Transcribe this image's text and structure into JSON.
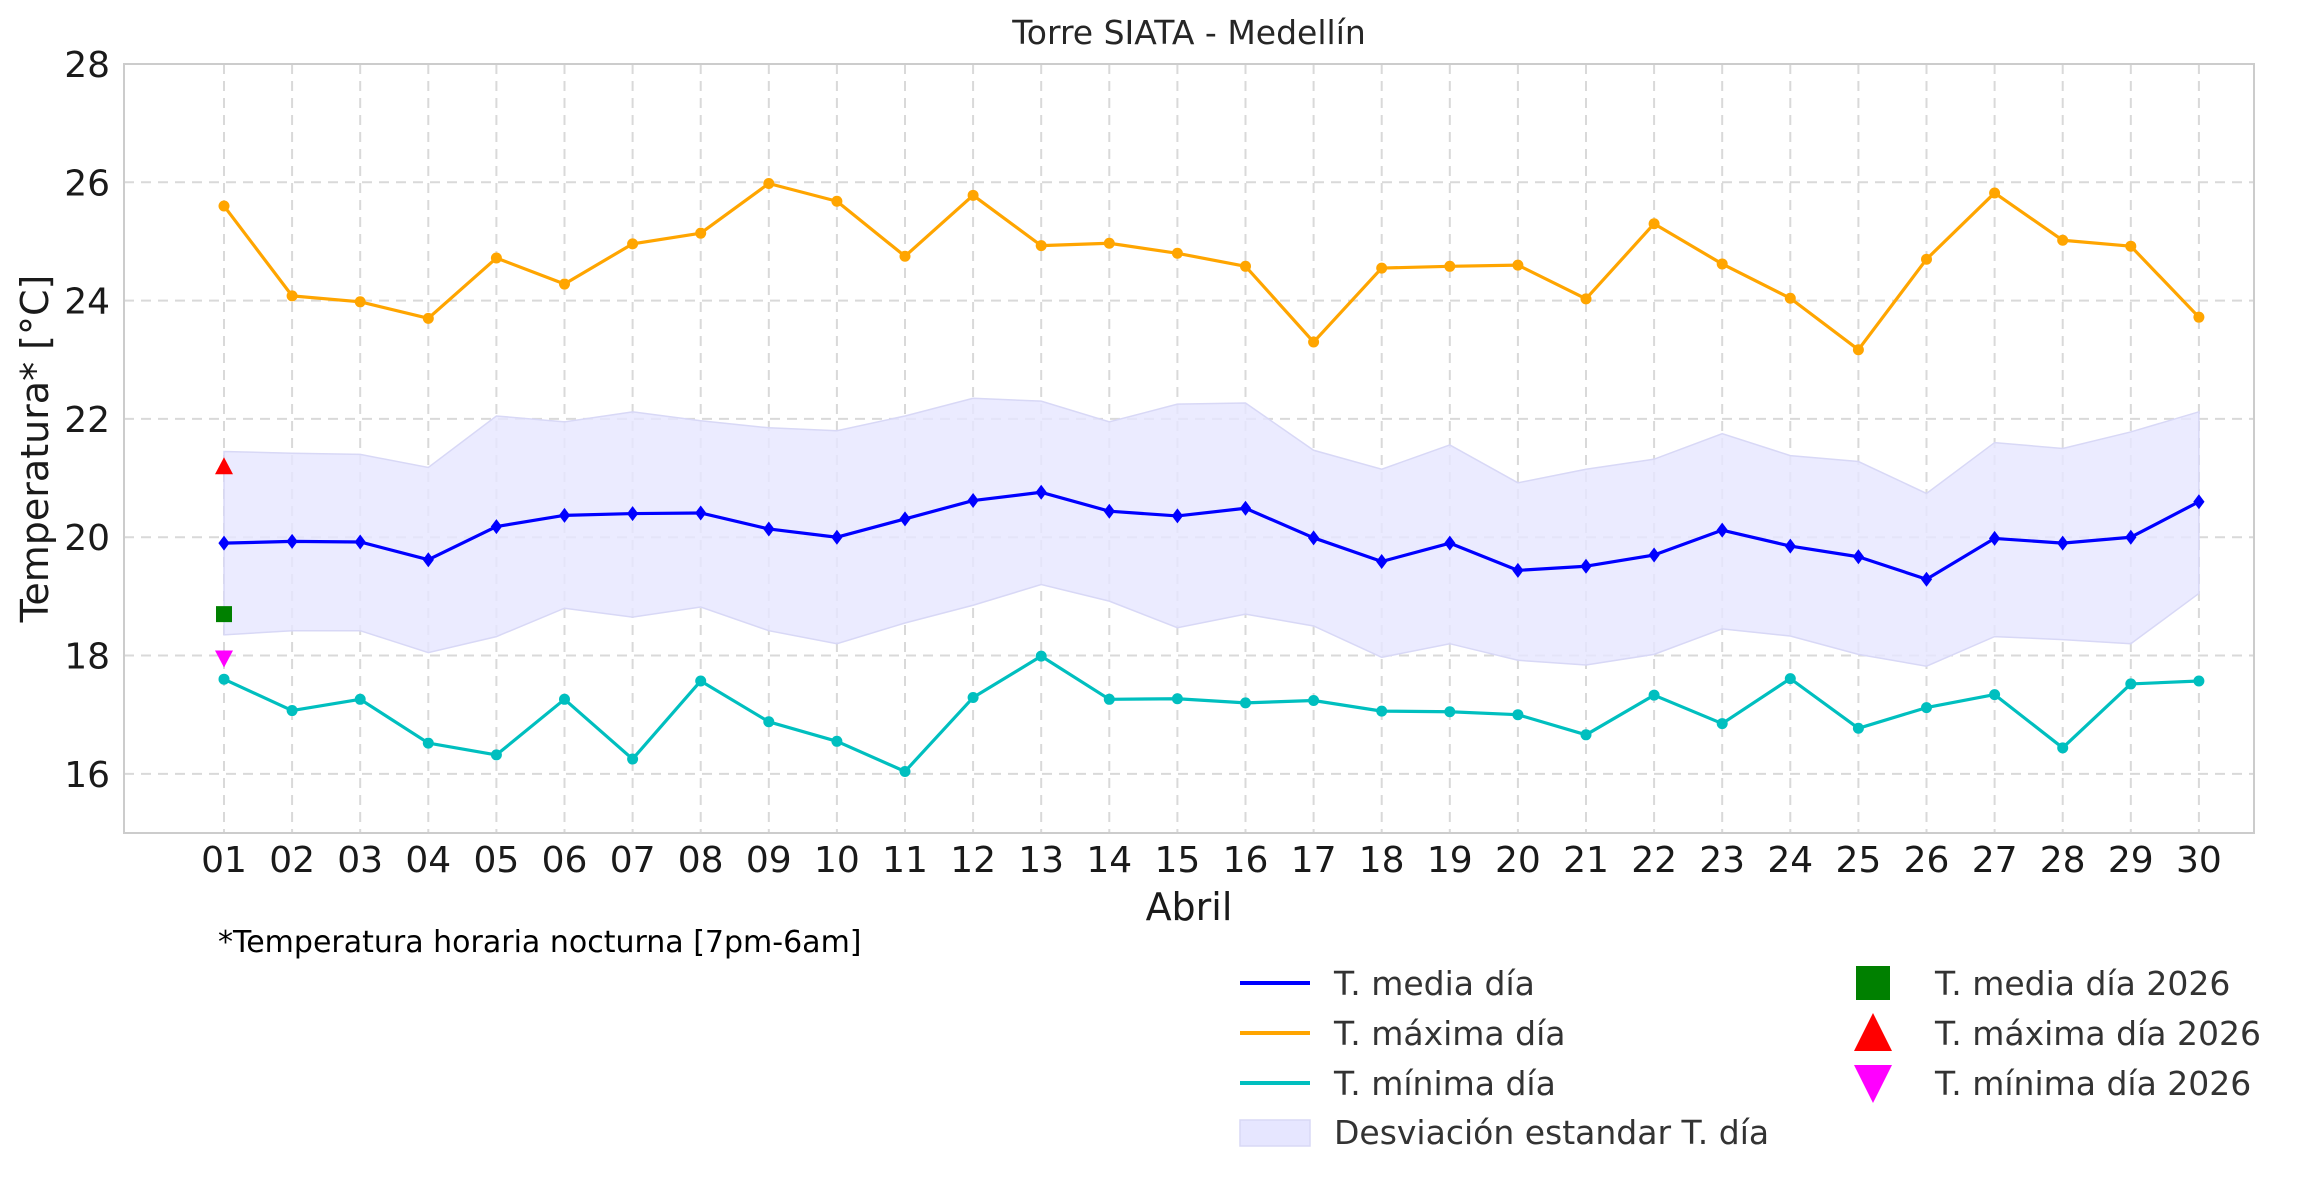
{
  "chart_data": {
    "type": "line",
    "title": "Torre SIATA - Medellín",
    "xlabel": "Abril",
    "ylabel": "Temperatura* [°C]",
    "note": "*Temperatura horaria nocturna [7pm-6am]",
    "ylim": [
      15,
      28
    ],
    "yticks": [
      "16",
      "18",
      "20",
      "22",
      "24",
      "26",
      "28"
    ],
    "categories": [
      "01",
      "02",
      "03",
      "04",
      "05",
      "06",
      "07",
      "08",
      "09",
      "10",
      "11",
      "12",
      "13",
      "14",
      "15",
      "16",
      "17",
      "18",
      "19",
      "20",
      "21",
      "22",
      "23",
      "24",
      "25",
      "26",
      "27",
      "28",
      "29",
      "30"
    ],
    "grid": true,
    "series": [
      {
        "name": "T. media día",
        "color": "#0000ff",
        "marker": "diamond",
        "values": [
          19.9,
          19.93,
          19.92,
          19.62,
          20.18,
          20.37,
          20.4,
          20.41,
          20.14,
          20.0,
          20.31,
          20.62,
          20.76,
          20.44,
          20.36,
          20.49,
          19.99,
          19.59,
          19.9,
          19.44,
          19.51,
          19.7,
          20.12,
          19.85,
          19.67,
          19.29,
          19.98,
          19.9,
          20.0,
          20.6
        ]
      },
      {
        "name": "T. máxima día",
        "color": "#ffa500",
        "marker": "circle",
        "values": [
          25.6,
          24.08,
          23.98,
          23.7,
          24.72,
          24.28,
          24.96,
          25.14,
          25.98,
          25.68,
          24.75,
          25.78,
          24.93,
          24.97,
          24.8,
          24.58,
          23.3,
          24.55,
          24.58,
          24.6,
          24.03,
          25.3,
          24.62,
          24.04,
          23.17,
          24.7,
          25.82,
          25.02,
          24.92,
          23.72
        ]
      },
      {
        "name": "T. mínima día",
        "color": "#00bfbf",
        "marker": "circle",
        "values": [
          17.6,
          17.07,
          17.26,
          16.52,
          16.32,
          17.26,
          16.25,
          17.57,
          16.88,
          16.55,
          16.04,
          17.29,
          17.99,
          17.26,
          17.27,
          17.2,
          17.24,
          17.06,
          17.05,
          17.0,
          16.66,
          17.33,
          16.85,
          17.61,
          16.77,
          17.12,
          17.34,
          16.44,
          17.52,
          17.57
        ]
      }
    ],
    "std_band": {
      "name": "Desviación estandar T. día",
      "color": "#e6e6ff",
      "upper": [
        21.45,
        21.42,
        21.4,
        21.18,
        22.05,
        21.95,
        22.12,
        21.97,
        21.85,
        21.8,
        22.05,
        22.35,
        22.3,
        21.95,
        22.25,
        22.27,
        21.47,
        21.15,
        21.56,
        20.92,
        21.15,
        21.32,
        21.75,
        21.38,
        21.28,
        20.74,
        21.6,
        21.5,
        21.78,
        22.12
      ],
      "lower": [
        18.35,
        18.42,
        18.42,
        18.05,
        18.32,
        18.8,
        18.65,
        18.82,
        18.42,
        18.2,
        18.55,
        18.85,
        19.2,
        18.92,
        18.47,
        18.7,
        18.5,
        17.97,
        18.2,
        17.92,
        17.84,
        18.02,
        18.45,
        18.33,
        18.02,
        17.82,
        18.32,
        18.27,
        18.2,
        19.05
      ]
    },
    "points_2026": [
      {
        "name": "T. media día 2026",
        "color": "#008000",
        "marker": "square",
        "x": "01",
        "y": 18.7
      },
      {
        "name": "T. máxima día 2026",
        "color": "#ff0000",
        "marker": "triangle-up",
        "x": "01",
        "y": 21.2
      },
      {
        "name": "T. mínima día 2026",
        "color": "#ff00ff",
        "marker": "triangle-down",
        "x": "01",
        "y": 17.95
      }
    ],
    "legend_position": "bottom-right"
  }
}
